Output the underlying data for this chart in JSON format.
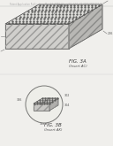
{
  "background_color": "#f0efec",
  "header_text": "Patent Application Publication   May 22, 2003  Sheet 14 of 24   US 2003/0096423 A1",
  "fig3a_label": "FIG. 3A",
  "fig3a_sublabel": "(Insert AC)",
  "fig3b_label": "FIG. 3B",
  "fig3b_sublabel": "(Insert AK)",
  "line_color": "#3a3a3a",
  "top_face_bg": "#d8d8d4",
  "front_face_bg": "#c8c8c4",
  "right_face_bg": "#b8b8b4",
  "dot_color": "#555550",
  "hatch_color": "#8a8a88",
  "annotation_color": "#555555",
  "header_color": "#aaaaaa"
}
